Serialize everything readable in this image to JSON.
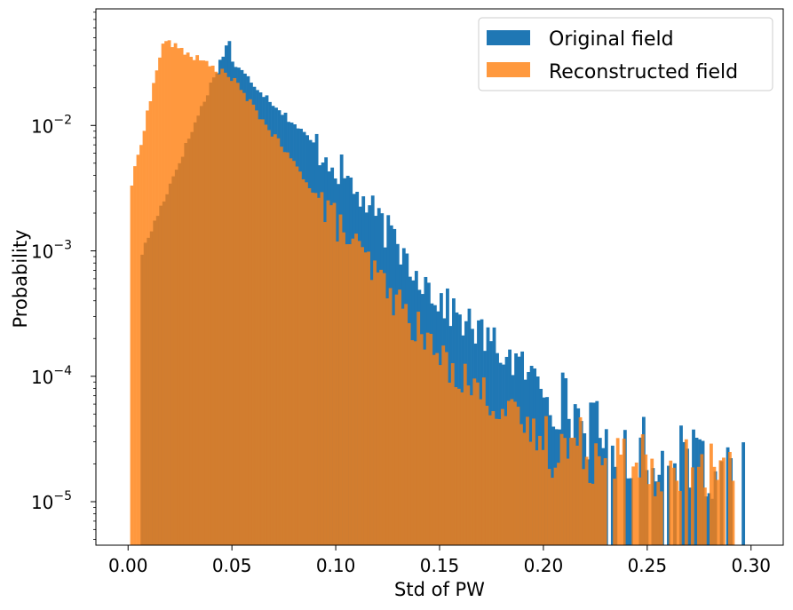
{
  "chart_data": {
    "type": "bar",
    "subtype": "histogram",
    "title": "",
    "xlabel": "Std of PW",
    "ylabel": "Probability",
    "xlim": [
      -0.0155,
      0.3155
    ],
    "ylim": [
      4.5e-06,
      0.085
    ],
    "yscale": "log",
    "grid": false,
    "legend_position": "top-right",
    "xticks": [
      0.0,
      0.05,
      0.1,
      0.15,
      0.2,
      0.25,
      0.3
    ],
    "xtick_labels": [
      "0.00",
      "0.05",
      "0.10",
      "0.15",
      "0.20",
      "0.25",
      "0.30"
    ],
    "yticks": [
      1e-05,
      0.0001,
      0.001,
      0.01
    ],
    "ytick_base": "10",
    "ytick_exponents": [
      "−5",
      "−4",
      "−3",
      "−2"
    ],
    "bin_width": 0.0015,
    "series": [
      {
        "name": "Original field",
        "color": "#1f77b4",
        "opacity": 1.0,
        "bins": [
          {
            "x0": 0.006,
            "x1": 0.05,
            "y0": 0.0009,
            "y1": 0.055
          },
          {
            "x0": 0.05,
            "x1": 0.1,
            "y0": 0.032,
            "y1": 0.0048
          },
          {
            "x0": 0.1,
            "x1": 0.15,
            "y0": 0.0048,
            "y1": 0.0004
          },
          {
            "x0": 0.15,
            "x1": 0.2,
            "y0": 0.0004,
            "y1": 8.5e-05
          },
          {
            "x0": 0.2,
            "x1": 0.23,
            "y0": 8.5e-05,
            "y1": 3e-05
          },
          {
            "x0": 0.23,
            "x1": 0.299,
            "y0": 3e-05,
            "y1": 1.6e-05
          }
        ]
      },
      {
        "name": "Reconstructed field",
        "color": "#ff7f0e",
        "opacity": 0.8,
        "bins": [
          {
            "x0": 0.001,
            "x1": 0.017,
            "y0": 0.003,
            "y1": 0.048
          },
          {
            "x0": 0.017,
            "x1": 0.05,
            "y0": 0.048,
            "y1": 0.024
          },
          {
            "x0": 0.05,
            "x1": 0.1,
            "y0": 0.024,
            "y1": 0.0017
          },
          {
            "x0": 0.1,
            "x1": 0.15,
            "y0": 0.0017,
            "y1": 0.00014
          },
          {
            "x0": 0.15,
            "x1": 0.2,
            "y0": 0.00014,
            "y1": 3e-05
          },
          {
            "x0": 0.2,
            "x1": 0.295,
            "y0": 3e-05,
            "y1": 1.5e-05
          }
        ]
      }
    ]
  }
}
